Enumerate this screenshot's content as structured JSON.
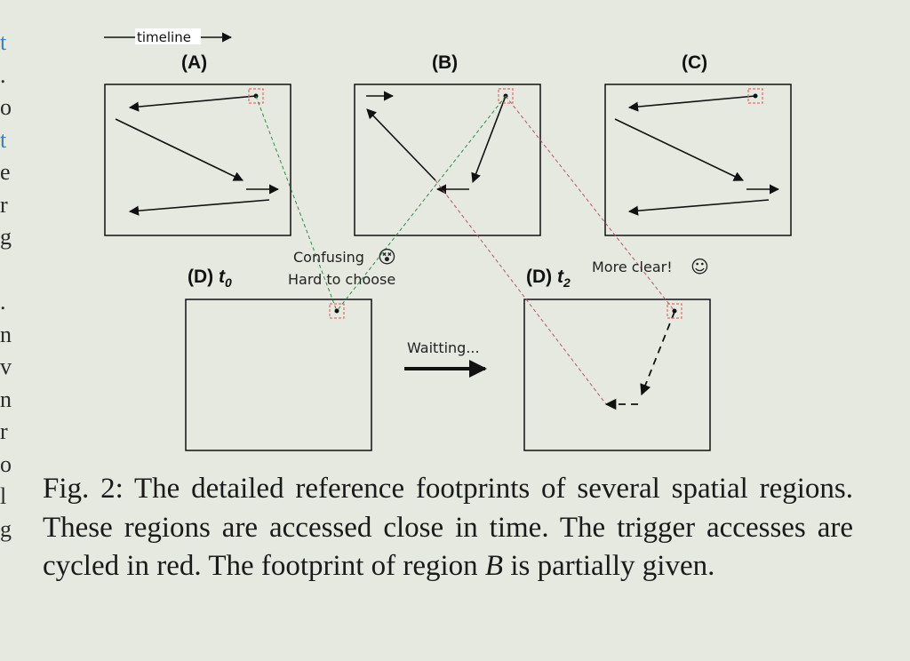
{
  "margin_text": [
    "t",
    ".",
    "o",
    "t",
    "e",
    "r",
    "g",
    "",
    ".",
    "n",
    "v",
    "n",
    "r",
    "o",
    "l",
    "g"
  ],
  "figure": {
    "timeline_label": "timeline",
    "panels": {
      "A": "(A)",
      "B": "(B)",
      "C": "(C)",
      "D0": "(D) ",
      "D0_sub": "t",
      "D0_subscript": "0",
      "D2": "(D) ",
      "D2_sub": "t",
      "D2_subscript": "2"
    },
    "confusing_text": "Confusing",
    "hard_to_choose_text": "Hard to choose",
    "more_clear_text": "More clear!",
    "waiting_text": "Waitting...",
    "colors": {
      "trigger_red": "#e86a6a",
      "green_dash": "#2e8b45",
      "red_dash": "#b05a6a",
      "ink": "#111111",
      "background": "#e6e9e0"
    },
    "icons": [
      "confused-face-icon",
      "smile-face-icon"
    ]
  },
  "caption": {
    "prefix": "Fig. 2: The detailed reference footprints of several spatial regions. These regions are accessed close in time. The trigger accesses are cycled in red. The footprint of region ",
    "emph": "B",
    "suffix": " is partially given."
  }
}
